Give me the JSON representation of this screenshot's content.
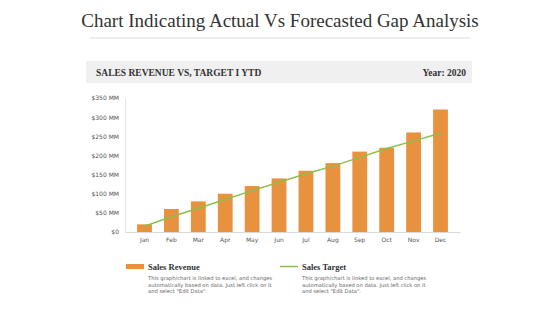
{
  "chart_data": {
    "type": "bar",
    "title": "Chart Indicating Actual Vs Forecasted Gap Analysis",
    "subtitle": "SALES REVENUE VS, TARGET I YTD",
    "annotations": [
      "Year: 2020",
      "This graph/chart is linked to excel, and changes automatically based on data. Just left click on it and select \"Edit Data\".",
      "This graph/chart is linked to excel, and changes automatically based on data. Just left click on it and select \"Edit Data\"."
    ],
    "categories": [
      "Jan",
      "Feb",
      "Mar",
      "Apr",
      "May",
      "Jun",
      "Jul",
      "Aug",
      "Sep",
      "Oct",
      "Nov",
      "Dec"
    ],
    "series": [
      {
        "name": "Sales Revenue",
        "type": "bar",
        "color": "#e8913f",
        "values": [
          20,
          60,
          80,
          100,
          120,
          140,
          160,
          180,
          210,
          220,
          260,
          320
        ]
      },
      {
        "name": "Sales Target",
        "type": "line",
        "color": "#8cbf4a",
        "values": [
          15,
          40,
          62,
          85,
          108,
          130,
          152,
          172,
          195,
          218,
          238,
          258
        ]
      }
    ],
    "ylim": [
      0,
      350
    ],
    "yticks": [
      {
        "value": 0,
        "label": "$0"
      },
      {
        "value": 50,
        "label": "$50 MM"
      },
      {
        "value": 100,
        "label": "$100 MM"
      },
      {
        "value": 150,
        "label": "$150 MM"
      },
      {
        "value": 200,
        "label": "$200 MM"
      },
      {
        "value": 250,
        "label": "$250 MM"
      },
      {
        "value": 300,
        "label": "$300 MM"
      },
      {
        "value": 350,
        "label": "$350 MM"
      }
    ],
    "grid": false,
    "legend": "bottom"
  }
}
